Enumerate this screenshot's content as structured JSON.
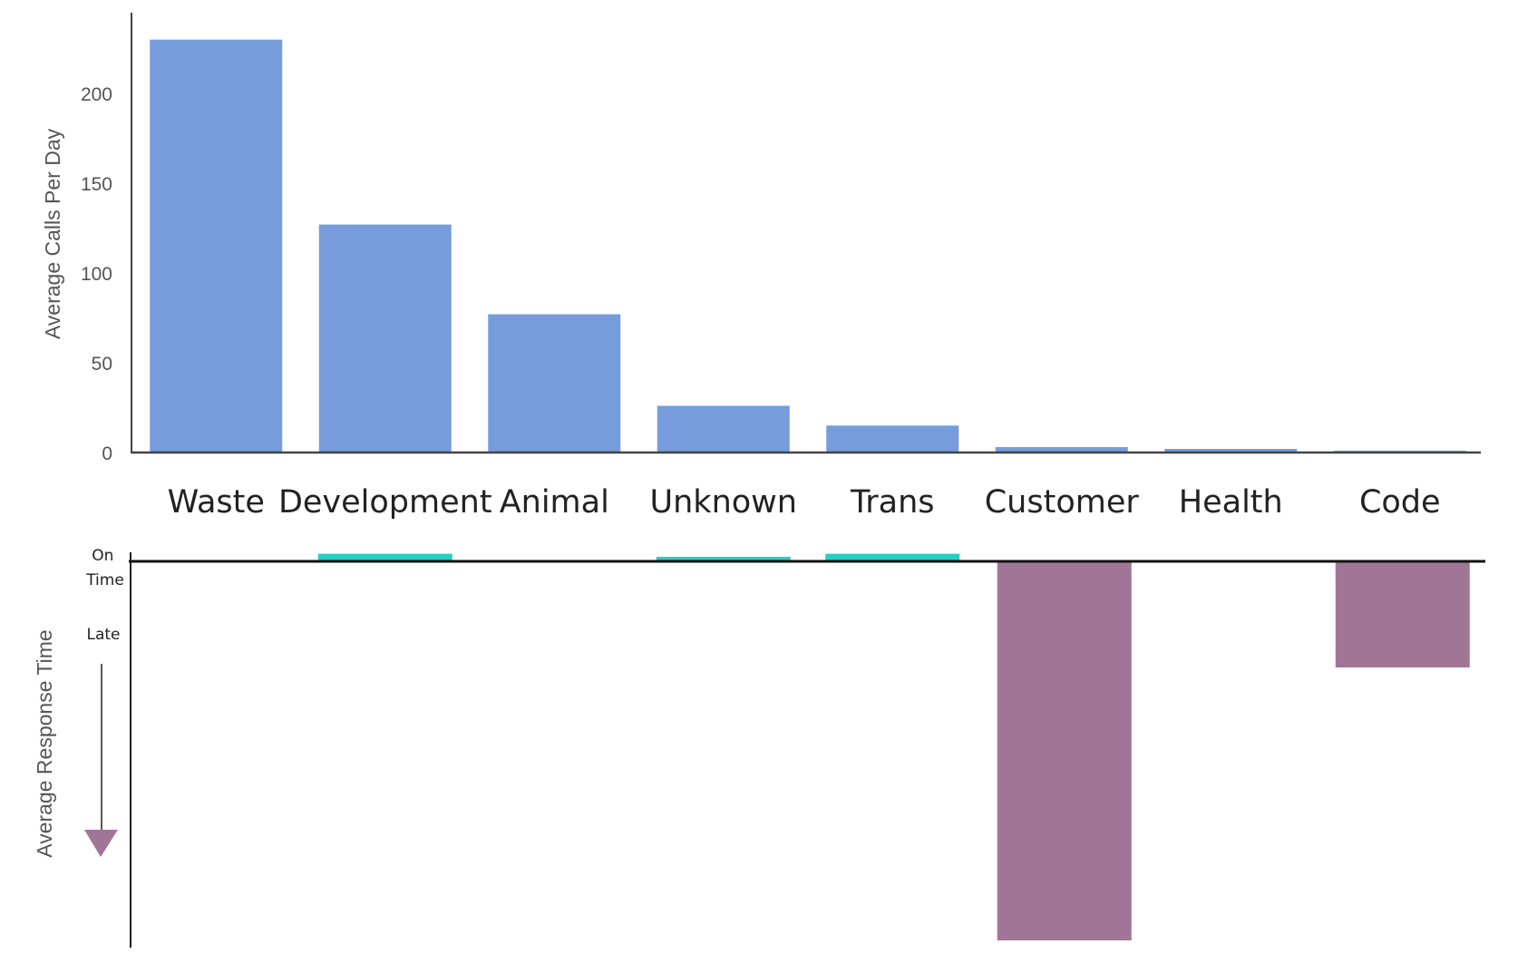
{
  "chart_data": [
    {
      "type": "bar",
      "categories": [
        "Waste",
        "Development",
        "Animal",
        "Unknown",
        "Trans",
        "Customer",
        "Health",
        "Code"
      ],
      "values": [
        230,
        127,
        77,
        26,
        15,
        3,
        2,
        1
      ],
      "xlabel": "",
      "ylabel": "Average Calls Per Day",
      "yticks": [
        "0",
        "50",
        "100",
        "150",
        "200"
      ],
      "ylim": [
        0,
        245
      ],
      "grid": false,
      "color": "#769cdb"
    },
    {
      "type": "bar",
      "categories": [
        "Waste",
        "Development",
        "Animal",
        "Unknown",
        "Trans",
        "Customer",
        "Health",
        "Code"
      ],
      "values": [
        0,
        0.02,
        0,
        0.012,
        0.02,
        -1.0,
        0,
        -0.28
      ],
      "ylabel": "Average Response Time",
      "labels": {
        "on_time": "On Time",
        "late": "Late"
      },
      "on_time_color": "#25cec4",
      "late_color": "#a17596",
      "grid": false
    }
  ]
}
